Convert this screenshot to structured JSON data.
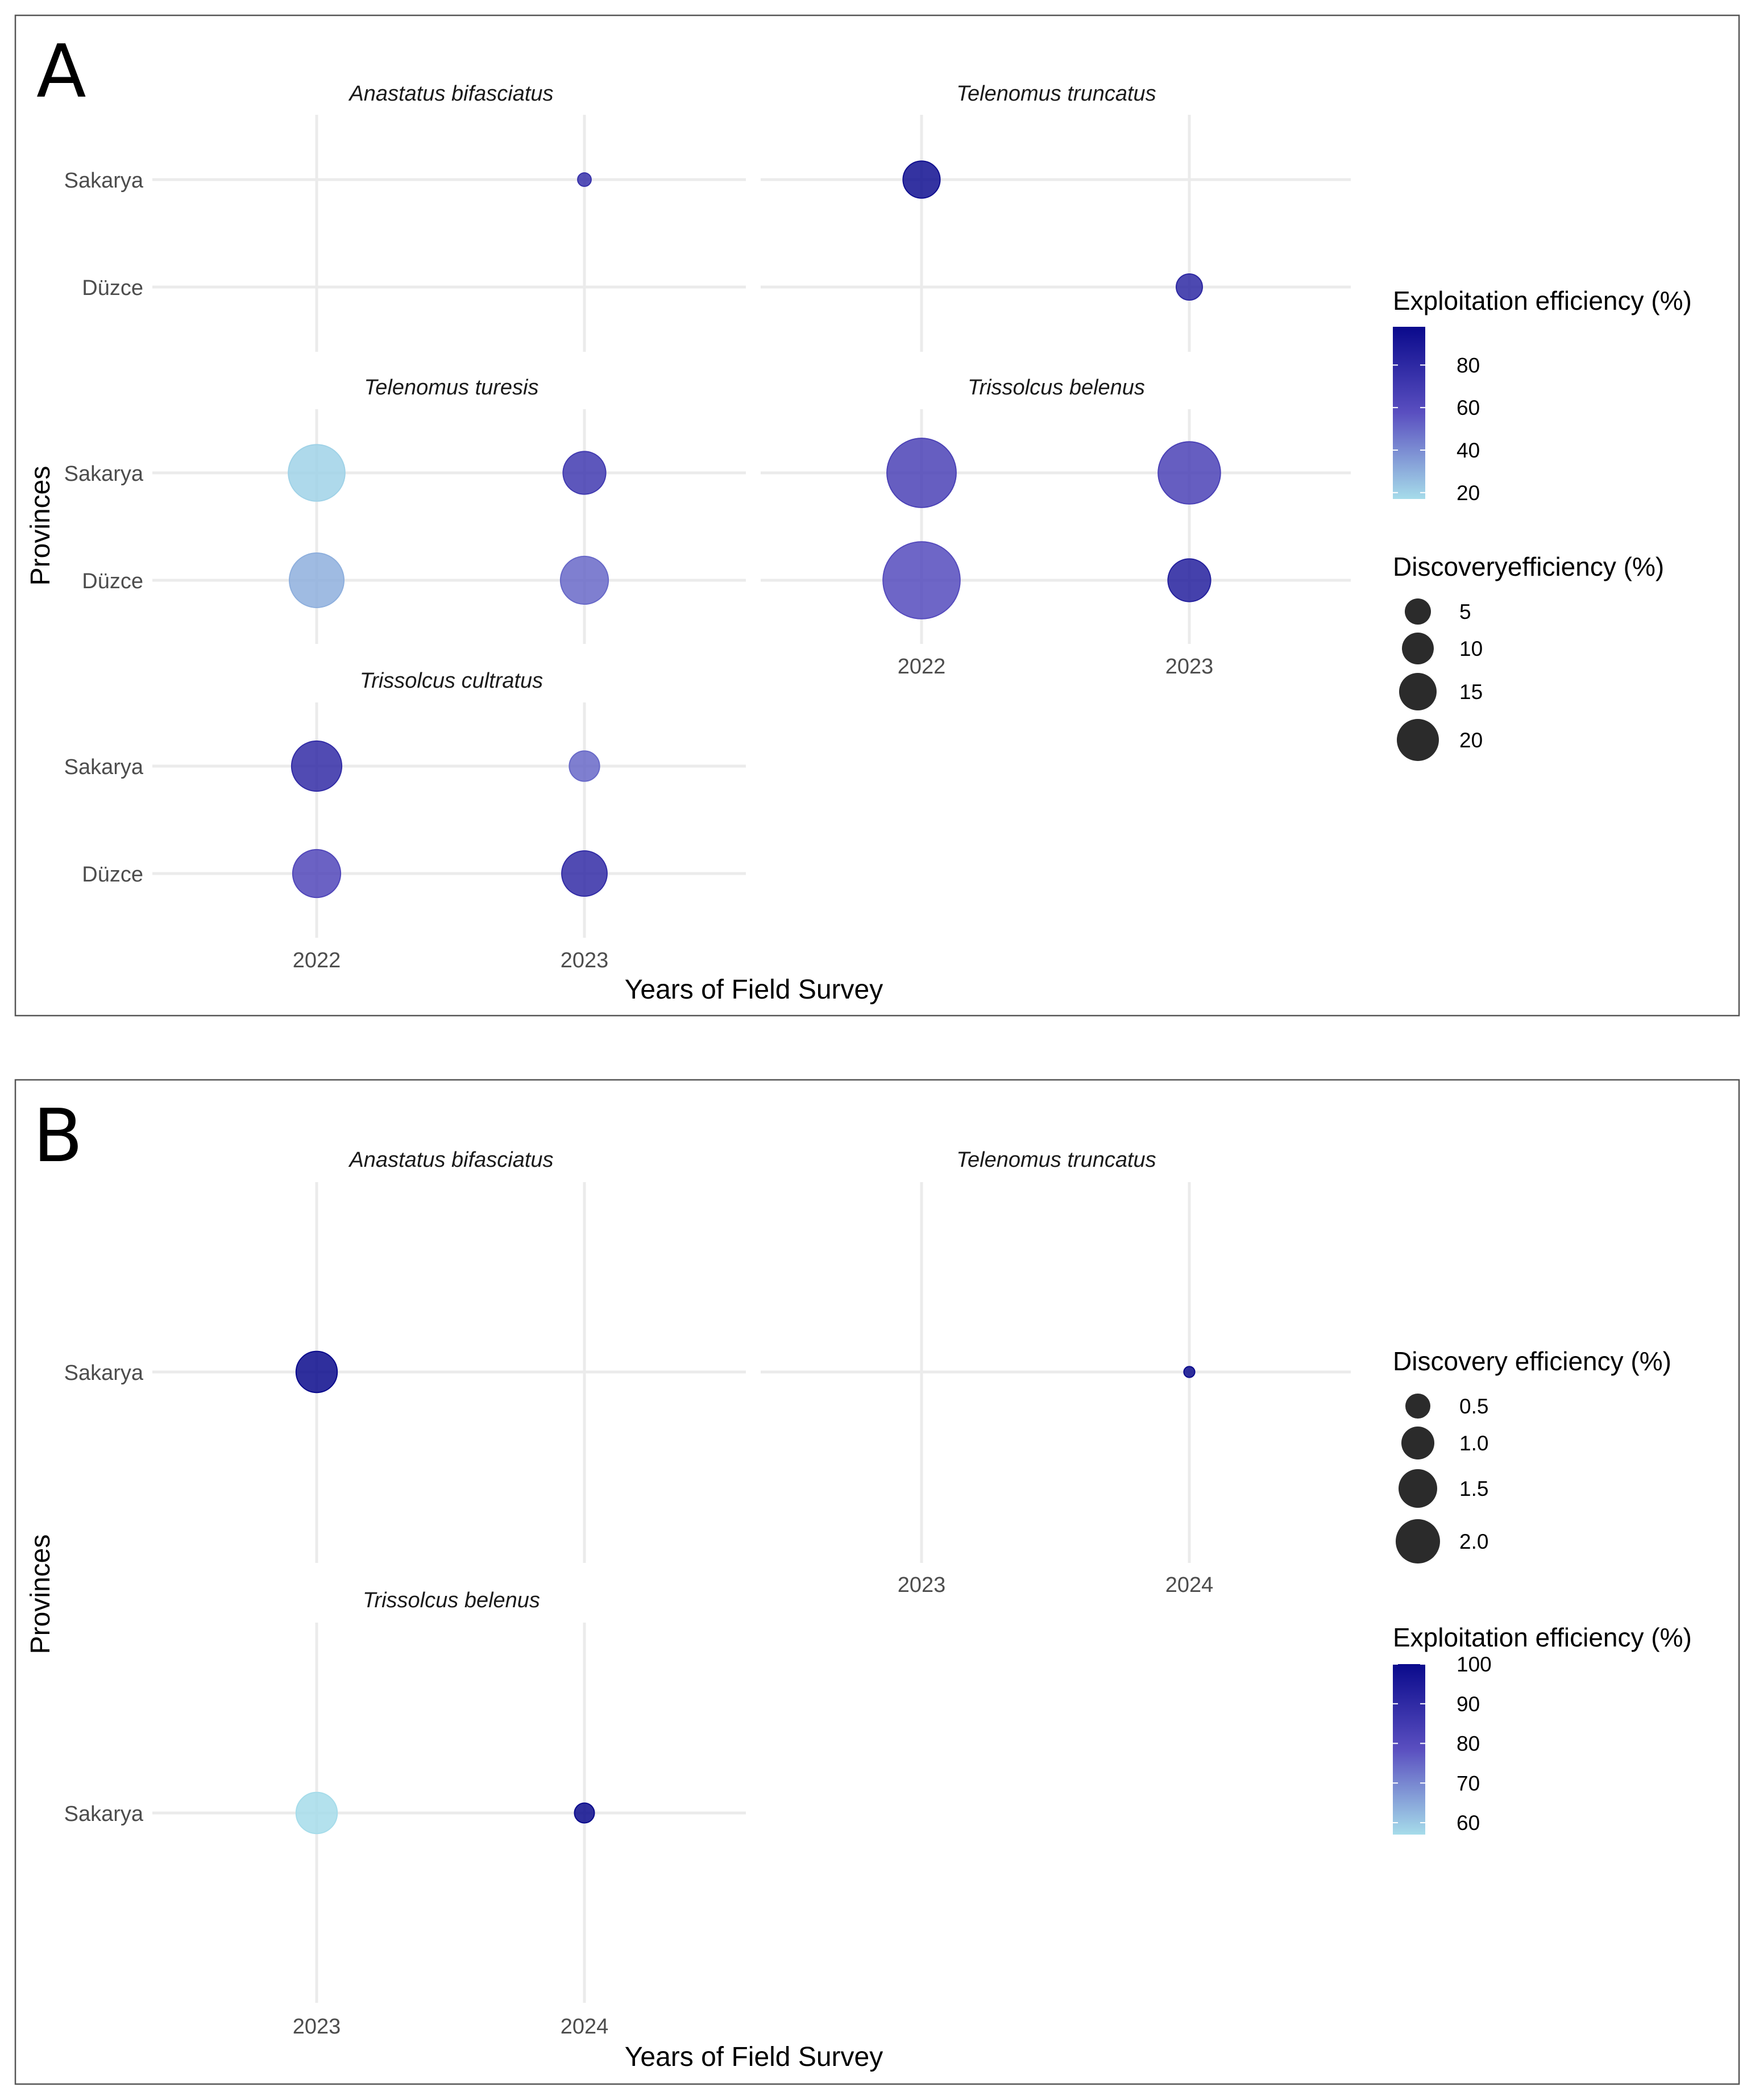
{
  "chart_data": [
    {
      "type": "scatter",
      "panel_label": "A",
      "xlabel": "Years of Field Survey",
      "ylabel": "Provinces",
      "x_categories": [
        "2022",
        "2023"
      ],
      "y_categories": [
        "Sakarya",
        "Düzce"
      ],
      "facets": [
        {
          "title": "Anastatus bifasciatus",
          "points": [
            {
              "x": "2023",
              "y": "Sakarya",
              "exploitation": 75,
              "discovery": 0.8
            }
          ]
        },
        {
          "title": "Telenomus truncatus",
          "points": [
            {
              "x": "2022",
              "y": "Sakarya",
              "exploitation": 95,
              "discovery": 6
            },
            {
              "x": "2023",
              "y": "Düzce",
              "exploitation": 80,
              "discovery": 3
            }
          ]
        },
        {
          "title": "Telenomus turesis",
          "points": [
            {
              "x": "2022",
              "y": "Sakarya",
              "exploitation": 20,
              "discovery": 14
            },
            {
              "x": "2023",
              "y": "Sakarya",
              "exploitation": 70,
              "discovery": 8
            },
            {
              "x": "2022",
              "y": "Düzce",
              "exploitation": 30,
              "discovery": 13
            },
            {
              "x": "2023",
              "y": "Düzce",
              "exploitation": 50,
              "discovery": 10
            }
          ]
        },
        {
          "title": "Trissolcus belenus",
          "points": [
            {
              "x": "2022",
              "y": "Sakarya",
              "exploitation": 65,
              "discovery": 21
            },
            {
              "x": "2023",
              "y": "Sakarya",
              "exploitation": 65,
              "discovery": 17
            },
            {
              "x": "2022",
              "y": "Düzce",
              "exploitation": 60,
              "discovery": 26
            },
            {
              "x": "2023",
              "y": "Düzce",
              "exploitation": 85,
              "discovery": 8
            }
          ]
        },
        {
          "title": "Trissolcus cultratus",
          "points": [
            {
              "x": "2022",
              "y": "Sakarya",
              "exploitation": 78,
              "discovery": 11
            },
            {
              "x": "2023",
              "y": "Sakarya",
              "exploitation": 50,
              "discovery": 4
            },
            {
              "x": "2022",
              "y": "Düzce",
              "exploitation": 62,
              "discovery": 10
            },
            {
              "x": "2023",
              "y": "Düzce",
              "exploitation": 78,
              "discovery": 9
            }
          ]
        }
      ],
      "color_legend": {
        "title": "Exploitation efficiency (%)",
        "min": 17,
        "max": 98,
        "breaks": [
          20,
          40,
          60,
          80
        ]
      },
      "size_legend": {
        "title": "Discoveryefficiency (%)",
        "breaks": [
          5,
          10,
          15,
          20
        ]
      }
    },
    {
      "type": "scatter",
      "panel_label": "B",
      "xlabel": "Years of Field Survey",
      "ylabel": "Provinces",
      "x_categories": [
        "2023",
        "2024"
      ],
      "y_categories": [
        "Sakarya"
      ],
      "facets": [
        {
          "title": "Anastatus bifasciatus",
          "points": [
            {
              "x": "2023",
              "y": "Sakarya",
              "exploitation": 100,
              "discovery": 2.15
            }
          ]
        },
        {
          "title": "Telenomus truncatus",
          "points": [
            {
              "x": "2024",
              "y": "Sakarya",
              "exploitation": 100,
              "discovery": 0.15
            }
          ]
        },
        {
          "title": "Trissolcus belenus",
          "points": [
            {
              "x": "2023",
              "y": "Sakarya",
              "exploitation": 57,
              "discovery": 2.15
            },
            {
              "x": "2024",
              "y": "Sakarya",
              "exploitation": 100,
              "discovery": 0.5
            }
          ]
        }
      ],
      "size_legend": {
        "title": "Discovery efficiency (%)",
        "breaks": [
          "0.5",
          "1.0",
          "1.5",
          "2.0"
        ]
      },
      "color_legend": {
        "title": "Exploitation efficiency (%)",
        "min": 57,
        "max": 100,
        "breaks": [
          100,
          90,
          80,
          70,
          60
        ]
      }
    }
  ],
  "colors": {
    "low": "#a6dcea",
    "mid": "#5a4fc0",
    "high": "#0a0a8c",
    "legend_key": "#2b2b2b"
  }
}
